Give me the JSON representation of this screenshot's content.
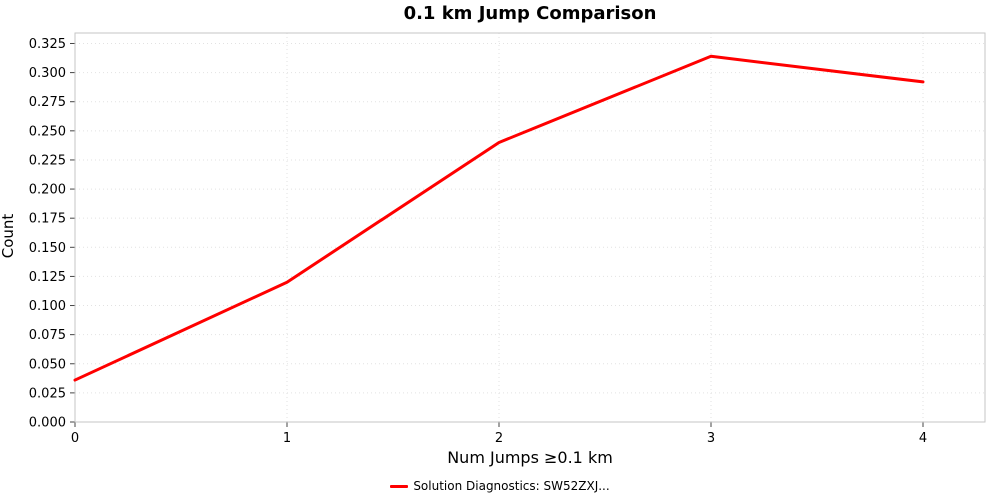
{
  "chart_data": {
    "type": "line",
    "title": "0.1 km Jump Comparison",
    "xlabel": "Num Jumps ≥0.1 km",
    "ylabel": "Count",
    "x": [
      0,
      1,
      2,
      3,
      4
    ],
    "series": [
      {
        "name": "Solution Diagnostics: SW52ZXJ...",
        "color": "#ff0000",
        "values": [
          0.036,
          0.12,
          0.24,
          0.314,
          0.292
        ]
      }
    ],
    "xticks": [
      0,
      1,
      2,
      3,
      4
    ],
    "yticks": [
      0.0,
      0.025,
      0.05,
      0.075,
      0.1,
      0.125,
      0.15,
      0.175,
      0.2,
      0.225,
      0.25,
      0.275,
      0.3,
      0.325
    ],
    "xlim": [
      0,
      4.2925
    ],
    "ylim": [
      0,
      0.334
    ],
    "grid": "dotted",
    "legend_position": "bottom",
    "line_width": 3
  }
}
